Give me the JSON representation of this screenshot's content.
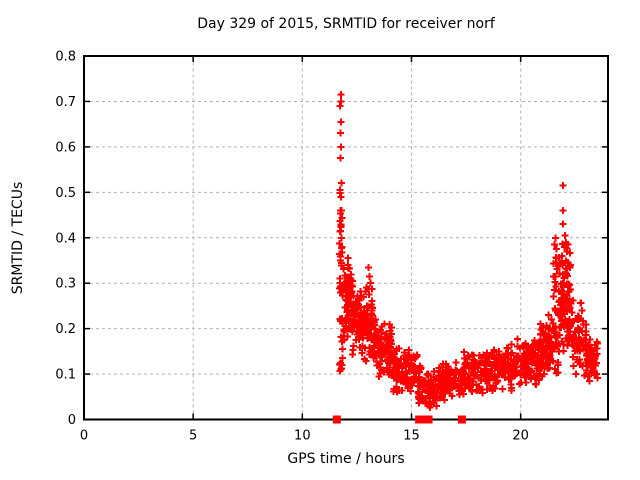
{
  "figure": {
    "background": "#ffffff",
    "text_color": "#000000"
  },
  "chart_data": {
    "type": "scatter",
    "title": "Day 329 of 2015, SRMTID for receiver norf",
    "xlabel": "GPS time / hours",
    "ylabel": "SRMTID / TECUs",
    "xlim": [
      0,
      24
    ],
    "ylim": [
      0,
      0.8
    ],
    "xticks": [
      {
        "value": 0,
        "label": "0"
      },
      {
        "value": 5,
        "label": "5"
      },
      {
        "value": 10,
        "label": "10"
      },
      {
        "value": 15,
        "label": "15"
      },
      {
        "value": 20,
        "label": "20"
      }
    ],
    "yticks": [
      {
        "value": 0.0,
        "label": "0"
      },
      {
        "value": 0.1,
        "label": "0.1"
      },
      {
        "value": 0.2,
        "label": "0.2"
      },
      {
        "value": 0.3,
        "label": "0.3"
      },
      {
        "value": 0.4,
        "label": "0.4"
      },
      {
        "value": 0.5,
        "label": "0.5"
      },
      {
        "value": 0.6,
        "label": "0.6"
      },
      {
        "value": 0.7,
        "label": "0.7"
      },
      {
        "value": 0.8,
        "label": "0.8"
      }
    ],
    "grid": {
      "show": true,
      "color": "#b4b4b4",
      "dash": "3,3"
    },
    "frame_color": "#000000",
    "marker": {
      "shape": "plus",
      "color": "#ff0000",
      "size": 7,
      "stroke_width": 2
    },
    "legend": null,
    "data_extent_hours": [
      11.5,
      23.55
    ],
    "clusters": [
      {
        "t0": 11.7,
        "t1": 11.85,
        "vmin": 0.1,
        "vmax": 0.5,
        "n": 38,
        "dist": "column"
      },
      {
        "t0": 11.85,
        "t1": 12.3,
        "vmin": 0.16,
        "vmax": 0.36,
        "n": 85,
        "dist": "band"
      },
      {
        "t0": 12.3,
        "t1": 12.9,
        "vmin": 0.13,
        "vmax": 0.3,
        "n": 85,
        "dist": "band"
      },
      {
        "t0": 12.9,
        "t1": 13.35,
        "vmin": 0.11,
        "vmax": 0.3,
        "n": 65,
        "dist": "band"
      },
      {
        "t0": 13.35,
        "t1": 14.1,
        "vmin": 0.085,
        "vmax": 0.22,
        "n": 90,
        "dist": "band"
      },
      {
        "t0": 14.1,
        "t1": 15.25,
        "vmin": 0.055,
        "vmax": 0.16,
        "n": 105,
        "dist": "band"
      },
      {
        "t0": 15.25,
        "t1": 16.2,
        "vmin": 0.02,
        "vmax": 0.12,
        "n": 95,
        "dist": "band"
      },
      {
        "t0": 16.2,
        "t1": 17.4,
        "vmin": 0.04,
        "vmax": 0.13,
        "n": 110,
        "dist": "band"
      },
      {
        "t0": 17.4,
        "t1": 18.6,
        "vmin": 0.05,
        "vmax": 0.16,
        "n": 110,
        "dist": "band"
      },
      {
        "t0": 18.6,
        "t1": 19.8,
        "vmin": 0.06,
        "vmax": 0.17,
        "n": 110,
        "dist": "band"
      },
      {
        "t0": 19.8,
        "t1": 20.9,
        "vmin": 0.065,
        "vmax": 0.19,
        "n": 110,
        "dist": "band"
      },
      {
        "t0": 20.9,
        "t1": 21.5,
        "vmin": 0.08,
        "vmax": 0.25,
        "n": 70,
        "dist": "band"
      },
      {
        "t0": 21.5,
        "t1": 21.8,
        "vmin": 0.1,
        "vmax": 0.37,
        "n": 45,
        "dist": "column"
      },
      {
        "t0": 21.8,
        "t1": 22.3,
        "vmin": 0.12,
        "vmax": 0.4,
        "n": 85,
        "dist": "band"
      },
      {
        "t0": 22.3,
        "t1": 23.0,
        "vmin": 0.08,
        "vmax": 0.27,
        "n": 70,
        "dist": "band"
      },
      {
        "t0": 23.0,
        "t1": 23.55,
        "vmin": 0.08,
        "vmax": 0.19,
        "n": 55,
        "dist": "band"
      }
    ],
    "outliers": [
      [
        11.76,
        0.715
      ],
      [
        11.78,
        0.7
      ],
      [
        11.73,
        0.69
      ],
      [
        11.76,
        0.655
      ],
      [
        11.74,
        0.63
      ],
      [
        11.77,
        0.6
      ],
      [
        11.75,
        0.575
      ],
      [
        11.79,
        0.52
      ],
      [
        11.73,
        0.505
      ],
      [
        11.77,
        0.49
      ],
      [
        11.75,
        0.46
      ],
      [
        11.78,
        0.425
      ],
      [
        11.74,
        0.415
      ],
      [
        11.8,
        0.4
      ],
      [
        11.82,
        0.38
      ],
      [
        13.02,
        0.335
      ],
      [
        13.08,
        0.315
      ],
      [
        13.12,
        0.3
      ],
      [
        12.95,
        0.29
      ],
      [
        21.93,
        0.515
      ],
      [
        21.95,
        0.46
      ],
      [
        21.94,
        0.43
      ],
      [
        21.6,
        0.4
      ],
      [
        21.56,
        0.385
      ],
      [
        21.64,
        0.375
      ],
      [
        22.02,
        0.405
      ],
      [
        22.08,
        0.39
      ],
      [
        22.0,
        0.38
      ],
      [
        22.12,
        0.37
      ],
      [
        21.9,
        0.36
      ]
    ],
    "zero_value_markers": {
      "times": [
        11.58,
        15.35,
        15.5,
        15.65,
        15.78,
        17.31
      ],
      "value": 0,
      "size": 8
    }
  }
}
